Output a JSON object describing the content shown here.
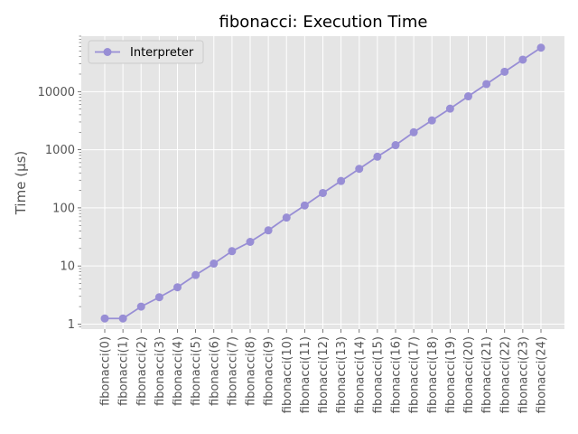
{
  "chart_data": {
    "type": "line",
    "title": "fibonacci: Execution Time",
    "xlabel": "",
    "ylabel": "Time (µs)",
    "y_scale": "log",
    "ylim": [
      0.82,
      90000
    ],
    "grid": true,
    "legend_position": "top-left",
    "categories": [
      "fibonacci(0)",
      "fibonacci(1)",
      "fibonacci(2)",
      "fibonacci(3)",
      "fibonacci(4)",
      "fibonacci(5)",
      "fibonacci(6)",
      "fibonacci(7)",
      "fibonacci(8)",
      "fibonacci(9)",
      "fibonacci(10)",
      "fibonacci(11)",
      "fibonacci(12)",
      "fibonacci(13)",
      "fibonacci(14)",
      "fibonacci(15)",
      "fibonacci(16)",
      "fibonacci(17)",
      "fibonacci(18)",
      "fibonacci(19)",
      "fibonacci(20)",
      "fibonacci(21)",
      "fibonacci(22)",
      "fibonacci(23)",
      "fibonacci(24)"
    ],
    "y_ticks": [
      {
        "value": 1,
        "label": "1"
      },
      {
        "value": 10,
        "label": "10"
      },
      {
        "value": 100,
        "label": "100"
      },
      {
        "value": 1000,
        "label": "1000"
      },
      {
        "value": 10000,
        "label": "10000"
      }
    ],
    "series": [
      {
        "name": "Interpreter",
        "color": "#988ED5",
        "values": [
          1.25,
          1.25,
          2.0,
          2.9,
          4.3,
          7.0,
          11.0,
          18.0,
          26.0,
          41.0,
          68.0,
          110.0,
          180.0,
          290.0,
          470.0,
          760.0,
          1200.0,
          2000.0,
          3200.0,
          5100.0,
          8300.0,
          13500.0,
          22000.0,
          35500.0,
          57000.0
        ]
      }
    ],
    "colors": {
      "plot_background": "#E5E5E5",
      "grid": "#FFFFFF"
    }
  }
}
